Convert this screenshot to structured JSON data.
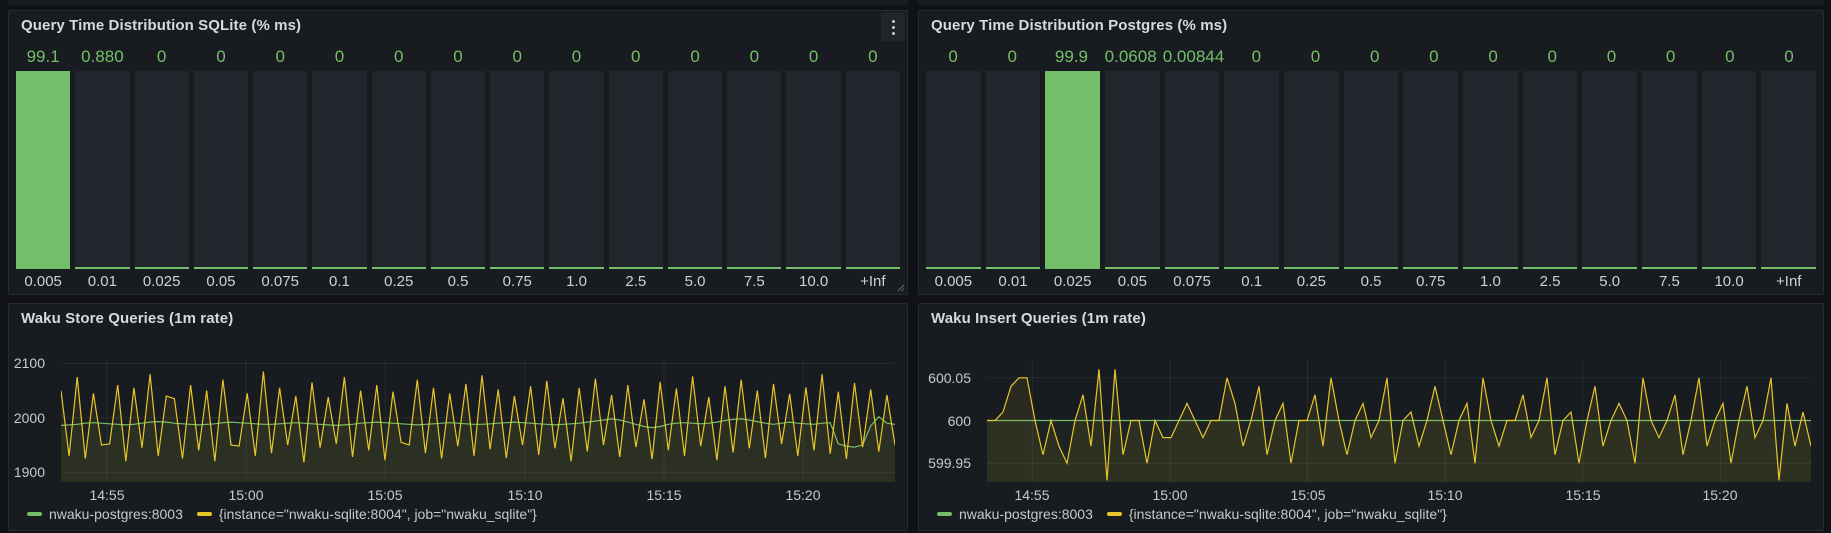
{
  "colors": {
    "green": "#73BF69",
    "yellow": "#E7C62A",
    "panel_bg": "#181b1f",
    "page_bg": "#111217",
    "bar_empty": "#22252b",
    "title_text": "#d8d9da",
    "axis_text": "#c8cacd"
  },
  "bar_panels": [
    {
      "title": "Query Time Distribution SQLite (% ms)",
      "values": [
        "99.1",
        "0.880",
        "0",
        "0",
        "0",
        "0",
        "0",
        "0",
        "0",
        "0",
        "0",
        "0",
        "0",
        "0",
        "0"
      ],
      "percents": [
        99.1,
        0.88,
        0,
        0,
        0,
        0,
        0,
        0,
        0,
        0,
        0,
        0,
        0,
        0,
        0
      ],
      "labels": [
        "0.005",
        "0.01",
        "0.025",
        "0.05",
        "0.075",
        "0.1",
        "0.25",
        "0.5",
        "0.75",
        "1.0",
        "2.5",
        "5.0",
        "7.5",
        "10.0",
        "+Inf"
      ]
    },
    {
      "title": "Query Time Distribution Postgres (% ms)",
      "values": [
        "0",
        "0",
        "99.9",
        "0.0608",
        "0.00844",
        "0",
        "0",
        "0",
        "0",
        "0",
        "0",
        "0",
        "0",
        "0",
        "0"
      ],
      "percents": [
        0,
        0,
        99.9,
        0.0608,
        0.00844,
        0,
        0,
        0,
        0,
        0,
        0,
        0,
        0,
        0,
        0
      ],
      "labels": [
        "0.005",
        "0.01",
        "0.025",
        "0.05",
        "0.075",
        "0.1",
        "0.25",
        "0.5",
        "0.75",
        "1.0",
        "2.5",
        "5.0",
        "7.5",
        "10.0",
        "+Inf"
      ]
    }
  ],
  "time_panels": [
    {
      "title": "Waku Store Queries (1m rate)",
      "legend": [
        {
          "label": "nwaku-postgres:8003",
          "color": "#73BF69"
        },
        {
          "label": "{instance=\"nwaku-sqlite:8004\", job=\"nwaku_sqlite\"}",
          "color": "#E7C62A"
        }
      ],
      "chart_data": {
        "type": "line",
        "x_ticks": [
          "14:55",
          "15:00",
          "15:05",
          "15:10",
          "15:15",
          "15:20"
        ],
        "y_ticks": [
          {
            "label": "2100",
            "value": 2100
          },
          {
            "label": "2000",
            "value": 2000
          },
          {
            "label": "1900",
            "value": 1900
          }
        ],
        "ylim": [
          1882,
          2108
        ],
        "series": [
          {
            "name": "nwaku-postgres:8003",
            "color": "#73BF69",
            "fill_opacity": 0.05,
            "values": [
              1986,
              1987,
              1988,
              1990,
              1991,
              1990,
              1989,
              1988,
              1987,
              1988,
              1990,
              1992,
              1993,
              1992,
              1990,
              1989,
              1988,
              1987,
              1988,
              1989,
              1991,
              1992,
              1991,
              1990,
              1989,
              1988,
              1988,
              1989,
              1990,
              1991,
              1990,
              1989,
              1988,
              1987,
              1986,
              1987,
              1988,
              1990,
              1991,
              1992,
              1991,
              1990,
              1989,
              1988,
              1987,
              1988,
              1989,
              1990,
              1991,
              1990,
              1989,
              1988,
              1988,
              1989,
              1990,
              1991,
              1992,
              1991,
              1990,
              1989,
              1988,
              1987,
              1988,
              1989,
              1990,
              1992,
              1994,
              1996,
              1998,
              1996,
              1992,
              1988,
              1984,
              1982,
              1984,
              1988,
              1990,
              1991,
              1990,
              1989,
              1990,
              1992,
              1995,
              1997,
              1998,
              1996,
              1993,
              1990,
              1988,
              1990,
              1992,
              1990,
              1989,
              1988,
              1990,
              1991,
              1952,
              1948,
              1946,
              1950,
              1985,
              2002,
              1990,
              1988
            ]
          },
          {
            "name": "{instance=\"nwaku-sqlite:8004\", job=\"nwaku_sqlite\"}",
            "color": "#E7C62A",
            "fill_opacity": 0.08,
            "values": [
              2050,
              1930,
              2075,
              1925,
              2045,
              1950,
              1952,
              2060,
              1920,
              2055,
              1945,
              2080,
              1930,
              2040,
              2035,
              1925,
              2060,
              1940,
              2050,
              1920,
              2070,
              1950,
              1948,
              2045,
              1930,
              2085,
              1935,
              2055,
              1950,
              2040,
              1918,
              2065,
              1945,
              2038,
              1952,
              2075,
              1928,
              2050,
              1940,
              2060,
              1922,
              2048,
              1955,
              1950,
              2070,
              1935,
              2055,
              1925,
              2045,
              1948,
              2062,
              1930,
              2078,
              1942,
              2052,
              1926,
              2040,
              1950,
              2058,
              1932,
              2068,
              1944,
              2036,
              1920,
              2055,
              1938,
              2072,
              1950,
              2042,
              1928,
              2060,
              1946,
              2034,
              1924,
              2066,
              1940,
              2054,
              1930,
              2076,
              1948,
              2038,
              1922,
              2058,
              1936,
              2070,
              1944,
              2050,
              1926,
              2062,
              1952,
              2044,
              1930,
              2056,
              1940,
              2080,
              1934,
              2048,
              1924,
              2064,
              1946,
              2052,
              1938,
              2042,
              1950
            ]
          }
        ]
      }
    },
    {
      "title": "Waku Insert Queries (1m rate)",
      "legend": [
        {
          "label": "nwaku-postgres:8003",
          "color": "#73BF69"
        },
        {
          "label": "{instance=\"nwaku-sqlite:8004\", job=\"nwaku_sqlite\"}",
          "color": "#E7C62A"
        }
      ],
      "chart_data": {
        "type": "line",
        "x_ticks": [
          "14:55",
          "15:00",
          "15:05",
          "15:10",
          "15:15",
          "15:20"
        ],
        "y_ticks": [
          {
            "label": "600.05",
            "value": 600.05
          },
          {
            "label": "600",
            "value": 600
          },
          {
            "label": "599.95",
            "value": 599.95
          }
        ],
        "ylim": [
          599.928,
          600.072
        ],
        "series": [
          {
            "name": "nwaku-postgres:8003",
            "color": "#73BF69",
            "fill_opacity": 0.05,
            "values": [
              600,
              600
            ]
          },
          {
            "name": "{instance=\"nwaku-sqlite:8004\", job=\"nwaku_sqlite\"}",
            "color": "#E7C62A",
            "fill_opacity": 0.09,
            "values": [
              600,
              600,
              600.01,
              600.04,
              600.05,
              600.05,
              600,
              599.96,
              600,
              599.97,
              599.95,
              600,
              600.03,
              599.97,
              600.06,
              599.93,
              600.06,
              599.96,
              600,
              600,
              599.95,
              600,
              599.98,
              599.98,
              600,
              600.02,
              600,
              599.98,
              600,
              600,
              600.05,
              600.02,
              599.97,
              600,
              600.04,
              599.96,
              600,
              600.02,
              599.95,
              600,
              600,
              600.03,
              599.97,
              600.05,
              600,
              599.96,
              600,
              600.02,
              599.98,
              600,
              600.05,
              599.95,
              600,
              600.01,
              599.97,
              600,
              600.04,
              600,
              599.96,
              600,
              600.02,
              599.95,
              600.05,
              600,
              599.97,
              600,
              600,
              600.03,
              599.98,
              600,
              600.05,
              599.96,
              600,
              600.01,
              599.95,
              600,
              600.04,
              599.97,
              600,
              600.02,
              600,
              599.95,
              600.05,
              600,
              599.98,
              600,
              600.03,
              599.96,
              600,
              600.05,
              599.97,
              600,
              600.02,
              599.95,
              600,
              600.04,
              599.98,
              600,
              600.05,
              599.93,
              600.02,
              599.97,
              600.01,
              599.97
            ]
          }
        ]
      }
    }
  ]
}
